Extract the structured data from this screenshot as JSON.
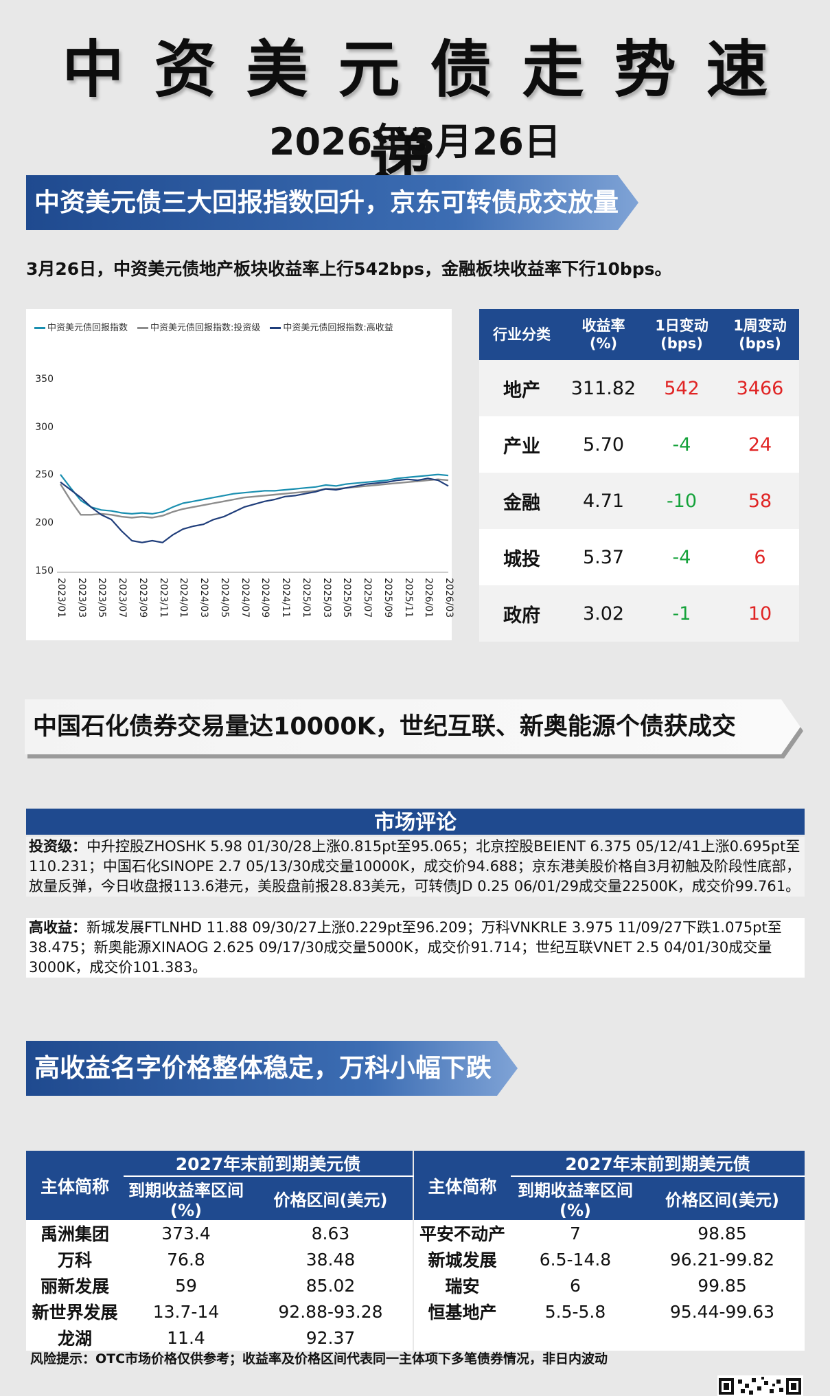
{
  "title": "中资美元债走势速递",
  "date": "2026年3月26日",
  "section1": {
    "banner": "中资美元债三大回报指数回升，京东可转债成交放量",
    "summary": "3月26日，中资美元债地产板块收益率上行542bps，金融板块收益率下行10bps。"
  },
  "chart_data": {
    "type": "line",
    "series": [
      {
        "name": "中资美元债回报指数",
        "color": "#1a8fb0",
        "x": [
          "2023/01",
          "2023/02",
          "2023/03",
          "2023/04",
          "2023/05",
          "2023/06",
          "2023/07",
          "2023/08",
          "2023/09",
          "2023/10",
          "2023/11",
          "2023/12",
          "2024/01",
          "2024/02",
          "2024/03",
          "2024/04",
          "2024/05",
          "2024/06",
          "2024/07",
          "2024/08",
          "2024/09",
          "2024/10",
          "2024/11",
          "2024/12",
          "2025/01",
          "2025/02",
          "2025/03",
          "2025/04",
          "2025/05",
          "2025/06",
          "2025/07",
          "2025/08",
          "2025/09",
          "2025/10",
          "2025/11",
          "2025/12",
          "2026/01",
          "2026/02",
          "2026/03"
        ],
        "values": [
          252,
          238,
          225,
          218,
          215,
          214,
          212,
          211,
          212,
          211,
          213,
          218,
          222,
          224,
          226,
          228,
          230,
          232,
          233,
          234,
          235,
          235,
          236,
          237,
          238,
          239,
          241,
          240,
          242,
          243,
          244,
          245,
          246,
          248,
          249,
          250,
          251,
          252,
          251
        ]
      },
      {
        "name": "中资美元债回报指数:投资级",
        "color": "#8c8c8c",
        "x": [
          "2023/01",
          "2023/02",
          "2023/03",
          "2023/04",
          "2023/05",
          "2023/06",
          "2023/07",
          "2023/08",
          "2023/09",
          "2023/10",
          "2023/11",
          "2023/12",
          "2024/01",
          "2024/02",
          "2024/03",
          "2024/04",
          "2024/05",
          "2024/06",
          "2024/07",
          "2024/08",
          "2024/09",
          "2024/10",
          "2024/11",
          "2024/12",
          "2025/01",
          "2025/02",
          "2025/03",
          "2025/04",
          "2025/05",
          "2025/06",
          "2025/07",
          "2025/08",
          "2025/09",
          "2025/10",
          "2025/11",
          "2025/12",
          "2026/01",
          "2026/02",
          "2026/03"
        ],
        "values": [
          242,
          225,
          210,
          210,
          211,
          210,
          208,
          207,
          208,
          207,
          209,
          213,
          216,
          218,
          220,
          222,
          224,
          226,
          228,
          229,
          230,
          231,
          232,
          233,
          234,
          235,
          237,
          237,
          238,
          239,
          240,
          241,
          242,
          243,
          244,
          245,
          246,
          247,
          246
        ]
      },
      {
        "name": "中资美元债回报指数:高收益",
        "color": "#1f3d7a",
        "x": [
          "2023/01",
          "2023/02",
          "2023/03",
          "2023/04",
          "2023/05",
          "2023/06",
          "2023/07",
          "2023/08",
          "2023/09",
          "2023/10",
          "2023/11",
          "2023/12",
          "2024/01",
          "2024/02",
          "2024/03",
          "2024/04",
          "2024/05",
          "2024/06",
          "2024/07",
          "2024/08",
          "2024/09",
          "2024/10",
          "2024/11",
          "2024/12",
          "2025/01",
          "2025/02",
          "2025/03",
          "2025/04",
          "2025/05",
          "2025/06",
          "2025/07",
          "2025/08",
          "2025/09",
          "2025/10",
          "2025/11",
          "2025/12",
          "2026/01",
          "2026/02",
          "2026/03"
        ],
        "values": [
          244,
          236,
          228,
          218,
          210,
          205,
          193,
          183,
          181,
          183,
          181,
          189,
          195,
          198,
          200,
          205,
          208,
          213,
          218,
          221,
          224,
          226,
          229,
          230,
          232,
          234,
          237,
          236,
          238,
          240,
          242,
          243,
          244,
          246,
          247,
          246,
          248,
          246,
          240
        ]
      }
    ],
    "xticks": [
      "2023/01",
      "2023/03",
      "2023/05",
      "2023/07",
      "2023/09",
      "2023/11",
      "2024/01",
      "2024/03",
      "2024/05",
      "2024/07",
      "2024/09",
      "2024/11",
      "2025/01",
      "2025/03",
      "2025/05",
      "2025/07",
      "2025/09",
      "2025/11",
      "2026/01",
      "2026/03"
    ],
    "yticks": [
      150,
      200,
      250,
      300,
      350
    ],
    "ylim": [
      150,
      360
    ],
    "legend": "top-left",
    "grid": false
  },
  "returns_table": {
    "headers": [
      "行业分类",
      "收益率\n(%)",
      "1日变动\n(bps)",
      "1周变动\n(bps)"
    ],
    "rows": [
      {
        "category": "地产",
        "yield": "311.82",
        "d1": "542",
        "w1": "3466",
        "d1_color": "red",
        "w1_color": "red"
      },
      {
        "category": "产业",
        "yield": "5.70",
        "d1": "-4",
        "w1": "24",
        "d1_color": "green",
        "w1_color": "red"
      },
      {
        "category": "金融",
        "yield": "4.71",
        "d1": "-10",
        "w1": "58",
        "d1_color": "green",
        "w1_color": "red"
      },
      {
        "category": "城投",
        "yield": "5.37",
        "d1": "-4",
        "w1": "6",
        "d1_color": "green",
        "w1_color": "red"
      },
      {
        "category": "政府",
        "yield": "3.02",
        "d1": "-1",
        "w1": "10",
        "d1_color": "green",
        "w1_color": "red"
      }
    ]
  },
  "section2": {
    "banner": "中国石化债券交易量达10000K，世纪互联、新奥能源个债获成交"
  },
  "commentary": {
    "header": "市场评论",
    "ig_label": "投资级：",
    "ig_text": "中升控股ZHOSHK 5.98 01/30/28上涨0.815pt至95.065；北京控股BEIENT 6.375 05/12/41上涨0.695pt至110.231；中国石化SINOPE 2.7 05/13/30成交量10000K，成交价94.688；京东港美股价格自3月初触及阶段性底部，放量反弹，今日收盘报113.6港元，美股盘前报28.83美元，可转债JD 0.25 06/01/29成交量22500K，成交价99.761。",
    "hy_label": "高收益：",
    "hy_text": "新城发展FTLNHD 11.88 09/30/27上涨0.229pt至96.209；万科VNKRLE 3.975 11/09/27下跌1.075pt至38.475；新奥能源XINAOG 2.625 09/17/30成交量5000K，成交价91.714；世纪互联VNET 2.5 04/01/30成交量3000K，成交价101.383。"
  },
  "section3": {
    "banner": "高收益名字价格整体稳定，万科小幅下跌"
  },
  "hy_table": {
    "col_name": "主体简称",
    "group_header": "2027年末前到期美元债",
    "col_yield": "到期收益率区间(%)",
    "col_price": "价格区间(美元)",
    "left": [
      {
        "name": "禹洲集团",
        "yield": "373.4",
        "price": "8.63"
      },
      {
        "name": "万科",
        "yield": "76.8",
        "price": "38.48"
      },
      {
        "name": "丽新发展",
        "yield": "59",
        "price": "85.02"
      },
      {
        "name": "新世界发展",
        "yield": "13.7-14",
        "price": "92.88-93.28"
      },
      {
        "name": "龙湖",
        "yield": "11.4",
        "price": "92.37"
      }
    ],
    "right": [
      {
        "name": "平安不动产",
        "yield": "7",
        "price": "98.85"
      },
      {
        "name": "新城发展",
        "yield": "6.5-14.8",
        "price": "96.21-99.82"
      },
      {
        "name": "瑞安",
        "yield": "6",
        "price": "99.85"
      },
      {
        "name": "恒基地产",
        "yield": "5.5-5.8",
        "price": "95.44-99.63"
      },
      {
        "name": "",
        "yield": "",
        "price": ""
      }
    ]
  },
  "footer": "风险提示：OTC市场价格仅供参考；收益率及价格区间代表同一主体项下多笔债券情况，非日内波动"
}
